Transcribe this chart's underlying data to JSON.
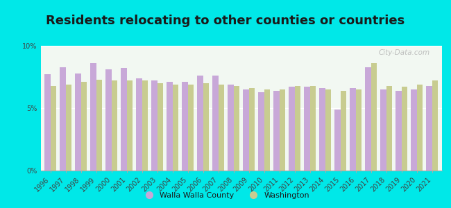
{
  "title": "Residents relocating to other counties or countries",
  "background_color": "#00e8e8",
  "plot_bg_top": "#ffffff",
  "plot_bg_bottom": "#e8f4e8",
  "years": [
    1996,
    1997,
    1998,
    1999,
    2000,
    2001,
    2002,
    2003,
    2004,
    2005,
    2006,
    2007,
    2008,
    2009,
    2010,
    2011,
    2012,
    2013,
    2014,
    2015,
    2016,
    2017,
    2018,
    2019,
    2020,
    2021
  ],
  "walla_walla": [
    7.7,
    8.3,
    7.8,
    8.6,
    8.1,
    8.2,
    7.4,
    7.2,
    7.1,
    7.1,
    7.6,
    7.6,
    6.9,
    6.5,
    6.3,
    6.4,
    6.7,
    6.7,
    6.6,
    4.9,
    6.6,
    8.3,
    6.5,
    6.4,
    6.5,
    6.8
  ],
  "washington": [
    6.8,
    6.9,
    7.1,
    7.3,
    7.2,
    7.2,
    7.2,
    7.0,
    6.9,
    6.9,
    7.0,
    6.9,
    6.8,
    6.6,
    6.5,
    6.5,
    6.8,
    6.8,
    6.5,
    6.4,
    6.5,
    8.6,
    6.8,
    6.7,
    6.9,
    7.2
  ],
  "walla_walla_color": "#c8a8d8",
  "washington_color": "#c8cc90",
  "ylim": [
    0,
    10
  ],
  "yticks": [
    0,
    5,
    10
  ],
  "ytick_labels": [
    "0%",
    "5%",
    "10%"
  ],
  "legend_labels": [
    "Walla Walla County",
    "Washington"
  ],
  "title_fontsize": 13,
  "tick_fontsize": 7,
  "label_color": "#404040"
}
